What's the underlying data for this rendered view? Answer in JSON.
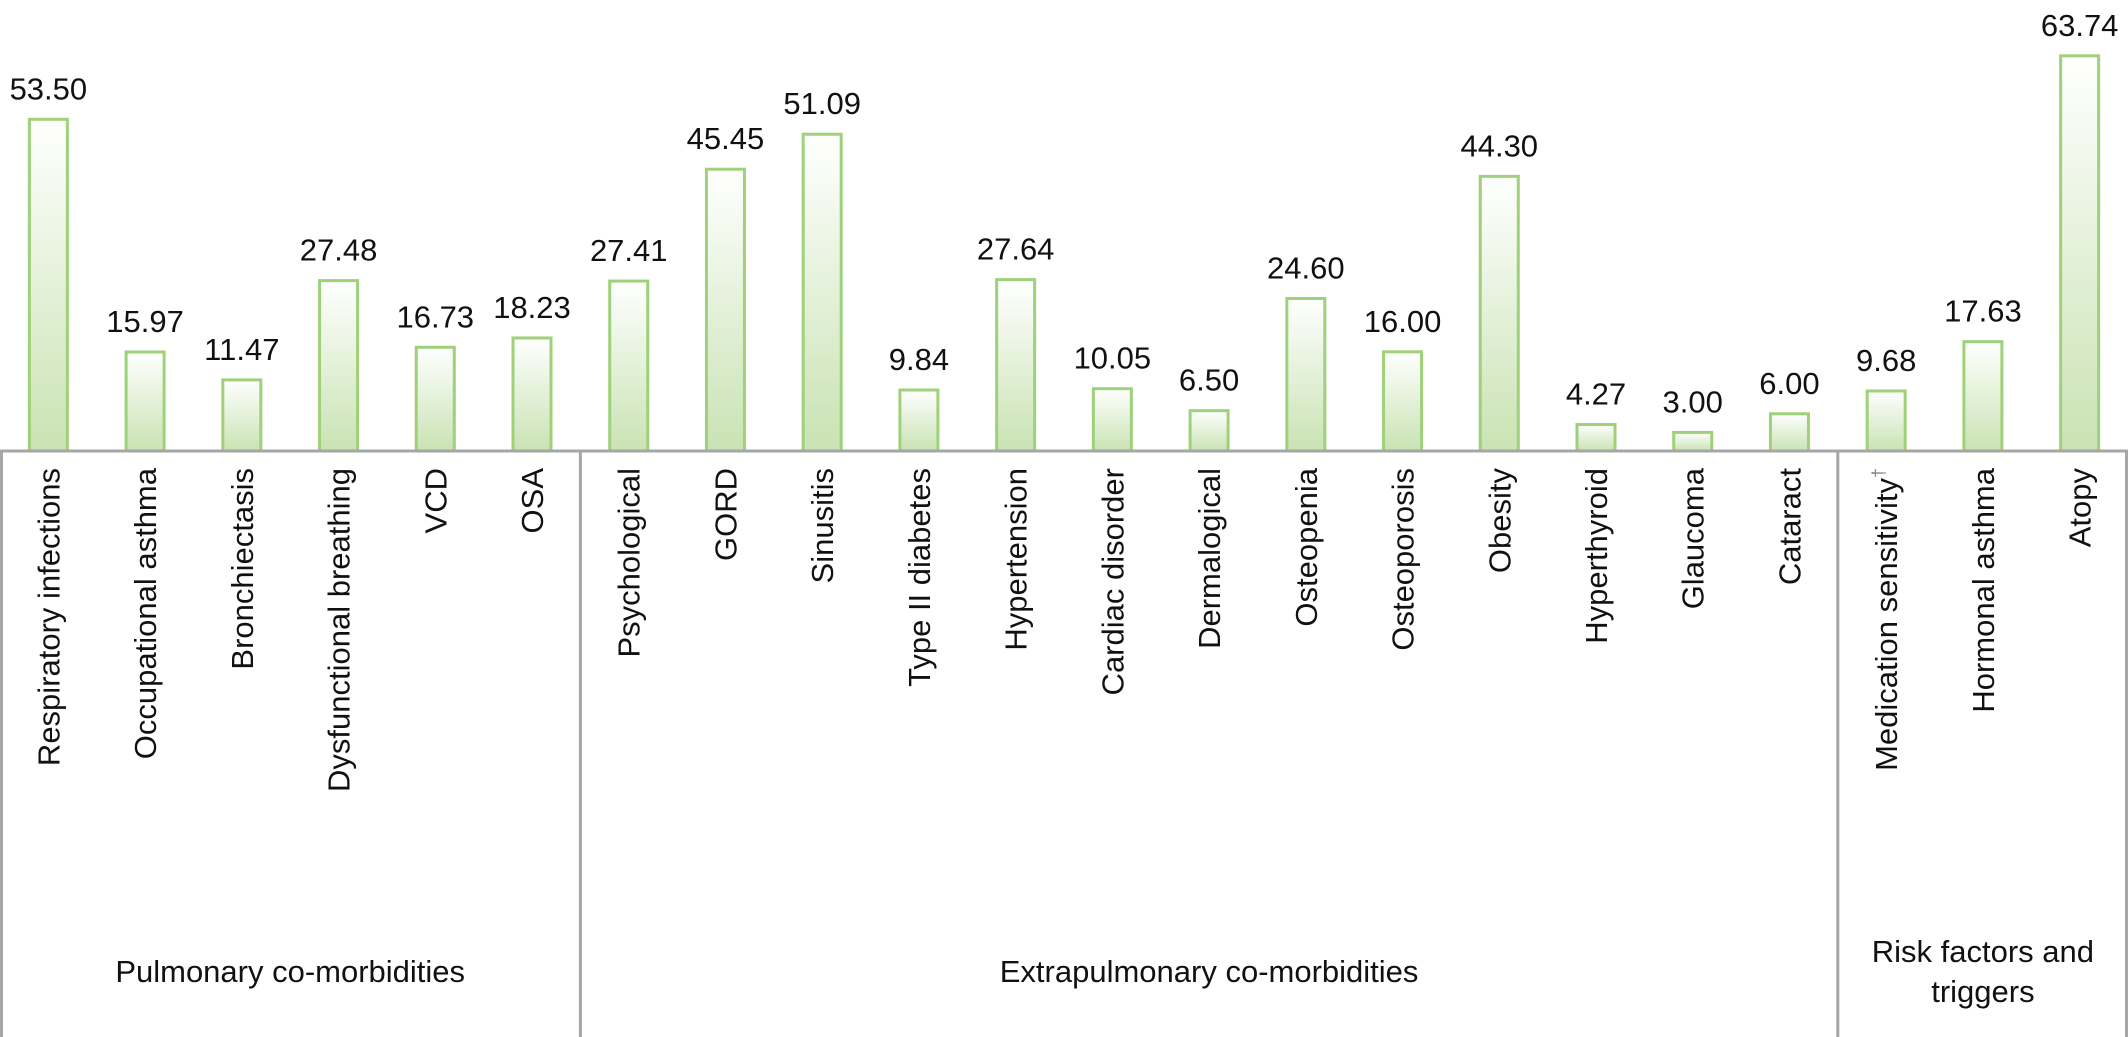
{
  "colors": {
    "bar_fill_top": "#ffffff",
    "bar_fill_bottom": "#c9e3b3",
    "bar_stroke": "#9fd07a",
    "axis": "#a6a6a6",
    "text": "#111111"
  },
  "chart_data": {
    "type": "bar",
    "title": "",
    "xlabel": "",
    "ylabel": "",
    "categories": [
      "Respiratory infections",
      "Occupational asthma",
      "Bronchiectasis",
      "Dysfunctional breathing",
      "VCD",
      "OSA",
      "Psychological",
      "GORD",
      "Sinusitis",
      "Type II diabetes",
      "Hypertension",
      "Cardiac disorder",
      "Dermalogical",
      "Osteopenia",
      "Osteoporosis",
      "Obesity",
      "Hyperthyroid",
      "Glaucoma",
      "Cataract",
      "Medication sensitivity",
      "Hormonal asthma",
      "Atopy"
    ],
    "values": [
      53.5,
      15.97,
      11.47,
      27.48,
      16.73,
      18.23,
      27.41,
      45.45,
      51.09,
      9.84,
      27.64,
      10.05,
      6.5,
      24.6,
      16.0,
      44.3,
      4.27,
      3.0,
      6.0,
      9.68,
      17.63,
      63.74
    ],
    "value_labels": [
      "53.50",
      "15.97",
      "11.47",
      "27.48",
      "16.73",
      "18.23",
      "27.41",
      "45.45",
      "51.09",
      "9.84",
      "27.64",
      "10.05",
      "6.50",
      "24.60",
      "16.00",
      "44.30",
      "4.27",
      "3.00",
      "6.00",
      "9.68",
      "17.63",
      "63.74"
    ],
    "footnote_marks": {
      "Medication sensitivity": "†"
    },
    "ylim": [
      0,
      65
    ],
    "grid": false,
    "groups": [
      {
        "label": "Pulmonary co-morbidities",
        "count": 6
      },
      {
        "label": "Extrapulmonary co-morbidities",
        "count": 13
      },
      {
        "label": "Risk factors and triggers",
        "label_lines": [
          "Risk factors and",
          "triggers"
        ],
        "count": 3
      }
    ]
  }
}
